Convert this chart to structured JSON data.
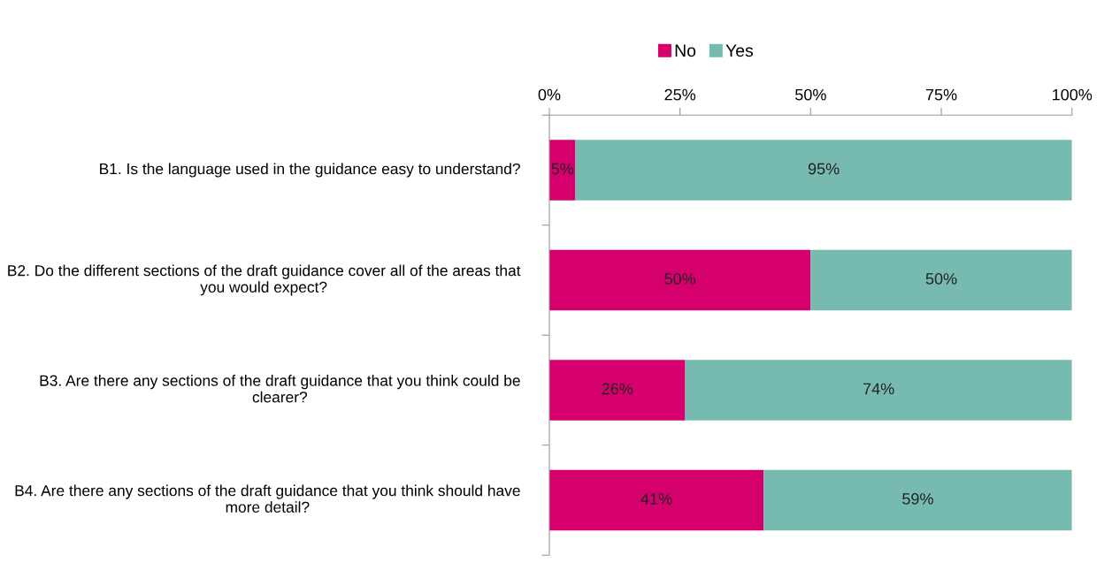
{
  "chart_data": {
    "type": "bar",
    "orientation": "horizontal",
    "stacked": true,
    "categories": [
      "B1. Is the language used in the guidance easy to understand?",
      "B2. Do the different sections of the draft guidance cover all of the areas that you would expect?",
      "B3. Are there any sections of the draft guidance that you think could be clearer?",
      "B4. Are there any sections of the draft guidance that you think should have more detail?"
    ],
    "series": [
      {
        "name": "No",
        "color": "#d5006d",
        "values": [
          5,
          50,
          26,
          41
        ],
        "value_labels": [
          "5%",
          "50%",
          "26%",
          "41%"
        ]
      },
      {
        "name": "Yes",
        "color": "#77bbb0",
        "values": [
          95,
          50,
          74,
          59
        ],
        "value_labels": [
          "95%",
          "50%",
          "74%",
          "59%"
        ]
      }
    ],
    "xlim": [
      0,
      100
    ],
    "xticks": [
      {
        "value": 0,
        "label": "0%"
      },
      {
        "value": 25,
        "label": "25%"
      },
      {
        "value": 50,
        "label": "50%"
      },
      {
        "value": 75,
        "label": "75%"
      },
      {
        "value": 100,
        "label": "100%"
      }
    ],
    "grid": false,
    "legend": "top"
  }
}
